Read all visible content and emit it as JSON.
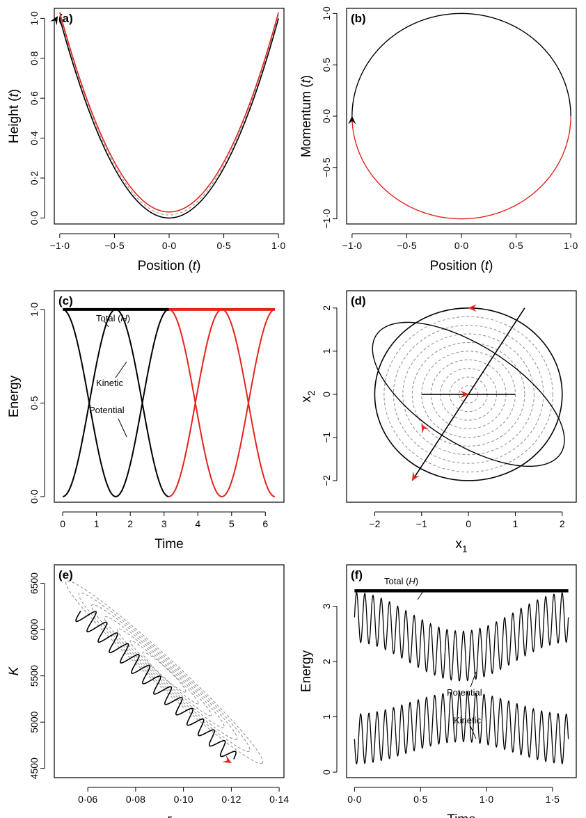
{
  "colors": {
    "black": "#000000",
    "red": "#e3231c",
    "grey": "#8c8c8c"
  },
  "chart_data": [
    {
      "type": "line",
      "panel_label": "(a)",
      "xlabel": "Position (t)",
      "ylabel": "Height (t)",
      "xlim": [
        -1.05,
        1.05
      ],
      "ylim": [
        -0.03,
        1.05
      ],
      "xticks": [
        -1.0,
        -0.5,
        0.0,
        0.5,
        1.0
      ],
      "xtick_labels": [
        "−1·0",
        "−0·5",
        "0·0",
        "0·5",
        "1·0"
      ],
      "yticks": [
        0.0,
        0.2,
        0.4,
        0.6,
        0.8,
        1.0
      ],
      "ytick_labels": [
        "0·0",
        "0·2",
        "0·4",
        "0·6",
        "0·8",
        "1·0"
      ],
      "series": [
        {
          "style": "black",
          "x": [
            -1.0,
            -0.75,
            -0.5,
            -0.25,
            0.0,
            0.25,
            0.5,
            0.75,
            1.0
          ],
          "y": [
            1.0,
            0.5625,
            0.25,
            0.0625,
            0.0,
            0.0625,
            0.25,
            0.5625,
            1.0
          ]
        },
        {
          "style": "grey-dashed",
          "x": [
            -1.0,
            -0.75,
            -0.5,
            -0.25,
            0.0,
            0.25,
            0.5,
            0.75,
            1.0
          ],
          "y": [
            1.01,
            0.57,
            0.26,
            0.075,
            0.015,
            0.075,
            0.26,
            0.57,
            1.01
          ]
        },
        {
          "style": "red",
          "x": [
            -1.0,
            -0.75,
            -0.5,
            -0.25,
            0.0,
            0.25,
            0.5,
            0.75,
            1.0
          ],
          "y": [
            1.03,
            0.59,
            0.28,
            0.09,
            0.03,
            0.09,
            0.28,
            0.59,
            1.03
          ]
        }
      ],
      "arrows": [
        {
          "x": -1.02,
          "y": 1.01,
          "color": "black",
          "dir": "up"
        }
      ]
    },
    {
      "type": "line",
      "panel_label": "(b)",
      "xlabel": "Position (t)",
      "ylabel": "Momentum (t)",
      "xlim": [
        -1.05,
        1.05
      ],
      "ylim": [
        -1.05,
        1.05
      ],
      "xticks": [
        -1.0,
        -0.5,
        0.0,
        0.5,
        1.0
      ],
      "xtick_labels": [
        "−1·0",
        "−0·5",
        "0·0",
        "0·5",
        "1·0"
      ],
      "yticks": [
        -1.0,
        -0.5,
        0.0,
        0.5,
        1.0
      ],
      "ytick_labels": [
        "−1·0",
        "−0·5",
        "0·0",
        "0·5",
        "1·0"
      ],
      "series": [
        {
          "style": "black",
          "shape": "circle-arc",
          "center": [
            0,
            0
          ],
          "radius": 1,
          "from_deg": 0,
          "to_deg": 180
        },
        {
          "style": "red",
          "shape": "circle-arc",
          "center": [
            0,
            0
          ],
          "radius": 1,
          "from_deg": 180,
          "to_deg": 360
        }
      ],
      "arrows": [
        {
          "x": -1.0,
          "y": 0.0,
          "color": "black",
          "dir": "up"
        }
      ]
    },
    {
      "type": "line",
      "panel_label": "(c)",
      "xlabel": "Time",
      "ylabel": "Energy",
      "xlim": [
        -0.25,
        6.55
      ],
      "ylim": [
        -0.03,
        1.1
      ],
      "xticks": [
        0,
        1,
        2,
        3,
        4,
        5,
        6
      ],
      "xtick_labels": [
        "0",
        "1",
        "2",
        "3",
        "4",
        "5",
        "6"
      ],
      "yticks": [
        0.0,
        0.5,
        1.0
      ],
      "ytick_labels": [
        "0·0",
        "0·5",
        "1·0"
      ],
      "series": [
        {
          "name": "Total (H)",
          "style": "black-thick",
          "x": [
            0,
            3.14
          ],
          "y": [
            1,
            1
          ]
        },
        {
          "style": "red-thick",
          "x": [
            3.14,
            6.28
          ],
          "y": [
            1,
            1
          ]
        },
        {
          "name": "Kinetic",
          "style": "black",
          "x": [
            0,
            0.785,
            1.571,
            2.356,
            3.142
          ],
          "y": [
            1,
            0.5,
            0,
            0.5,
            1
          ]
        },
        {
          "name": "Potential",
          "style": "black",
          "x": [
            0,
            0.785,
            1.571,
            2.356,
            3.142
          ],
          "y": [
            0,
            0.5,
            1,
            0.5,
            0
          ]
        },
        {
          "style": "red",
          "x": [
            3.142,
            3.927,
            4.712,
            5.498,
            6.283
          ],
          "y": [
            1,
            0.5,
            0,
            0.5,
            1
          ]
        },
        {
          "style": "red",
          "x": [
            3.142,
            3.927,
            4.712,
            5.498,
            6.283
          ],
          "y": [
            0,
            0.5,
            1,
            0.5,
            0
          ]
        }
      ],
      "annotations": [
        {
          "text": "Total",
          "math": "H"
        },
        {
          "text": "Kinetic"
        },
        {
          "text": "Potential"
        }
      ]
    },
    {
      "type": "line",
      "panel_label": "(d)",
      "xlabel": "x",
      "xlabel_sub": "1",
      "ylabel": "x",
      "ylabel_sub": "2",
      "xlim": [
        -2.6,
        2.3
      ],
      "ylim": [
        -2.5,
        2.4
      ],
      "xticks": [
        -2,
        -1,
        0,
        1,
        2
      ],
      "xtick_labels": [
        "−2",
        "−1",
        "0",
        "1",
        "2"
      ],
      "yticks": [
        -2,
        -1,
        0,
        1,
        2
      ],
      "ytick_labels": [
        "−2",
        "−1",
        "0",
        "1",
        "2"
      ],
      "contour_radii": [
        0.2,
        0.4,
        0.6,
        0.8,
        1.0,
        1.2,
        1.4,
        1.6,
        1.8,
        2.0
      ],
      "segments": [
        {
          "x": [
            -1.0,
            1.0
          ],
          "y": [
            0.0,
            0.0
          ]
        },
        {
          "x": [
            -1.2,
            1.2
          ],
          "y": [
            -2.0,
            2.0
          ]
        }
      ],
      "ellipse": {
        "center": [
          0,
          0
        ],
        "a": 2.4,
        "b": 1.1,
        "angle_deg": -36
      },
      "trajectory": {
        "style": "black",
        "shape": "circle",
        "radius": 2.0
      },
      "arrows": [
        {
          "x": 0.0,
          "y": 2.0,
          "color": "red",
          "dir": "left"
        },
        {
          "x": -1.0,
          "y": -0.7,
          "color": "red",
          "dir": "upleft"
        },
        {
          "x": -1.2,
          "y": -2.0,
          "color": "red",
          "dir": "down"
        },
        {
          "x": 0.0,
          "y": 0.0,
          "color": "red",
          "dir": "right"
        }
      ]
    },
    {
      "type": "line",
      "panel_label": "(e)",
      "xlabel": "r",
      "ylabel": "K",
      "xlim": [
        0.046,
        0.142
      ],
      "ylim": [
        4400,
        6700
      ],
      "xticks": [
        0.06,
        0.08,
        0.1,
        0.12,
        0.14
      ],
      "xtick_labels": [
        "0·06",
        "0·08",
        "0·10",
        "0·12",
        "0·14"
      ],
      "yticks": [
        4500,
        5000,
        5500,
        6000,
        6500
      ],
      "ytick_labels": [
        "4500",
        "5000",
        "5500",
        "6000",
        "6500"
      ],
      "contours": {
        "center": [
          0.092,
          5540
        ],
        "semi_major_r": [
          0.01,
          0.016,
          0.022,
          0.028,
          0.034,
          0.04,
          0.046
        ],
        "axis_ratio": 0.1
      },
      "trajectory": {
        "start": [
          0.057,
          6200
        ],
        "end": [
          0.121,
          4600
        ],
        "oscillations": 14,
        "amplitude_r": 0.004
      },
      "arrows": [
        {
          "x": 0.12,
          "y": 4560,
          "color": "red",
          "dir": "downright"
        }
      ]
    },
    {
      "type": "line",
      "panel_label": "(f)",
      "xlabel": "Time",
      "ylabel": "Energy",
      "xlim": [
        -0.06,
        1.68
      ],
      "ylim": [
        -0.1,
        3.75
      ],
      "xticks": [
        0.0,
        0.5,
        1.0,
        1.5
      ],
      "xtick_labels": [
        "0·0",
        "0·5",
        "1·0",
        "1·5"
      ],
      "yticks": [
        0,
        1,
        2,
        3
      ],
      "ytick_labels": [
        "0",
        "1",
        "2",
        "3"
      ],
      "series": [
        {
          "name": "Total (H)",
          "style": "black-thick",
          "x": [
            0,
            1.62
          ],
          "y": [
            3.28,
            3.28
          ]
        },
        {
          "name": "Potential",
          "style": "black",
          "x": [
            0,
            0.2,
            0.4,
            0.6,
            0.8,
            1.0,
            1.2,
            1.4,
            1.62
          ],
          "y": [
            2.9,
            2.3,
            2.1,
            2.4,
            2.9,
            2.4,
            2.1,
            2.3,
            2.9
          ]
        },
        {
          "name": "Kinetic",
          "style": "black",
          "x": [
            0,
            0.2,
            0.4,
            0.6,
            0.8,
            1.0,
            1.2,
            1.4,
            1.62
          ],
          "y": [
            0.35,
            0.95,
            1.15,
            0.85,
            0.35,
            0.85,
            1.15,
            0.95,
            0.35
          ]
        }
      ],
      "annotations": [
        {
          "text": "Total",
          "math": "H"
        },
        {
          "text": "Potential"
        },
        {
          "text": "Kinetic"
        }
      ]
    }
  ]
}
